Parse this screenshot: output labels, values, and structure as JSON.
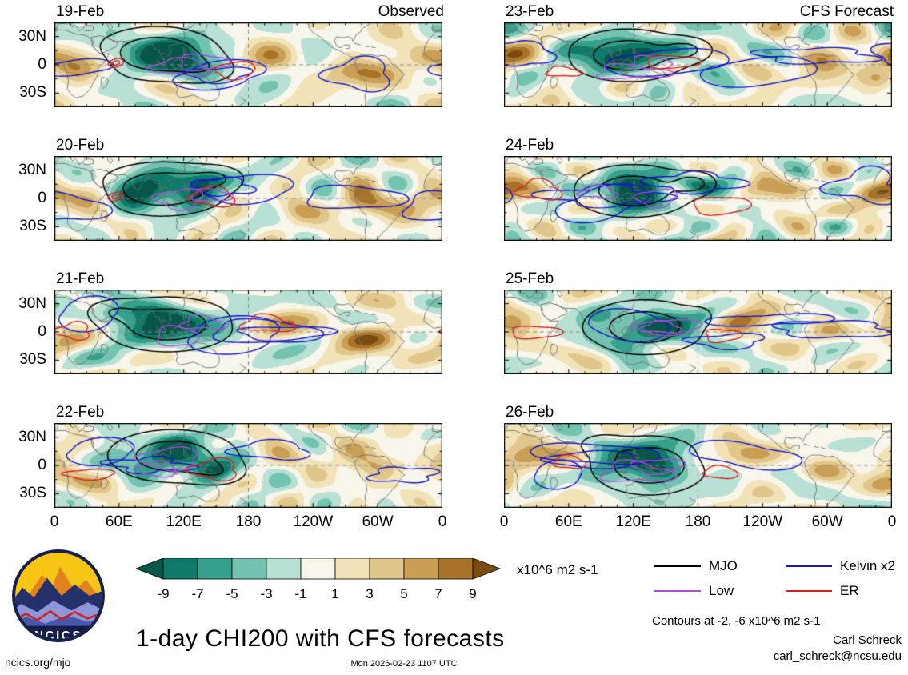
{
  "chart_data": {
    "type": "heatmap",
    "title": "1-day CHI200 with CFS forecasts",
    "contours_note": "Contours at -2, -6 x10^6 m2 s-1",
    "xticks": [
      "0",
      "60E",
      "120E",
      "180",
      "120W",
      "60W",
      "0"
    ],
    "yticks": [
      "30N",
      "0",
      "30S"
    ],
    "colorbar": {
      "levels": [
        "-9",
        "-7",
        "-5",
        "-3",
        "-1",
        "1",
        "3",
        "5",
        "7",
        "9"
      ],
      "colors": [
        "#06564a",
        "#0f7a69",
        "#35a18c",
        "#74c3b0",
        "#b8e0d4",
        "#f8f6ea",
        "#f1e2b8",
        "#e0c68a",
        "#ca9f55",
        "#a87328",
        "#7a4c10"
      ],
      "units": "x10^6 m2 s-1"
    },
    "legend": [
      {
        "label": "MJO",
        "color": "#000000"
      },
      {
        "label": "Low",
        "color": "#a84fd8"
      },
      {
        "label": "Kelvin x2",
        "color": "#1414cc"
      },
      {
        "label": "ER",
        "color": "#d62020"
      }
    ],
    "columns": [
      {
        "label": "Observed",
        "panels": [
          {
            "date": "19-Feb",
            "anomalies": [
              {
                "lon": 95,
                "lat": 12,
                "amp": -11,
                "rlon": 45,
                "rlat": 22
              },
              {
                "lon": 140,
                "lat": -5,
                "amp": -4,
                "rlon": 28,
                "rlat": 14
              },
              {
                "lon": 20,
                "lat": -4,
                "amp": 7,
                "rlon": 26,
                "rlat": 17
              },
              {
                "lon": 350,
                "lat": 10,
                "amp": 5,
                "rlon": 24,
                "rlat": 14
              },
              {
                "lon": 285,
                "lat": -8,
                "amp": 7,
                "rlon": 30,
                "rlat": 15
              },
              {
                "lon": 215,
                "lat": 8,
                "amp": 3,
                "rlon": 32,
                "rlat": 14
              }
            ]
          },
          {
            "date": "20-Feb",
            "anomalies": [
              {
                "lon": 100,
                "lat": 10,
                "amp": -11,
                "rlon": 48,
                "rlat": 22
              },
              {
                "lon": 150,
                "lat": 22,
                "amp": -5,
                "rlon": 22,
                "rlat": 11
              },
              {
                "lon": 15,
                "lat": 0,
                "amp": 6,
                "rlon": 28,
                "rlat": 17
              },
              {
                "lon": 300,
                "lat": -6,
                "amp": 7,
                "rlon": 33,
                "rlat": 15
              },
              {
                "lon": 230,
                "lat": -12,
                "amp": 4,
                "rlon": 28,
                "rlat": 12
              }
            ]
          },
          {
            "date": "21-Feb",
            "anomalies": [
              {
                "lon": 105,
                "lat": 8,
                "amp": -10,
                "rlon": 50,
                "rlat": 23
              },
              {
                "lon": 55,
                "lat": 22,
                "amp": -4,
                "rlon": 22,
                "rlat": 11
              },
              {
                "lon": 290,
                "lat": -5,
                "amp": 8,
                "rlon": 31,
                "rlat": 15
              },
              {
                "lon": 8,
                "lat": -12,
                "amp": 5,
                "rlon": 24,
                "rlat": 13
              },
              {
                "lon": 205,
                "lat": 12,
                "amp": 4,
                "rlon": 27,
                "rlat": 12
              }
            ]
          },
          {
            "date": "22-Feb",
            "anomalies": [
              {
                "lon": 110,
                "lat": 10,
                "amp": -10,
                "rlon": 48,
                "rlat": 22
              },
              {
                "lon": 152,
                "lat": -8,
                "amp": -4,
                "rlon": 24,
                "rlat": 12
              },
              {
                "lon": 295,
                "lat": 0,
                "amp": 6,
                "rlon": 29,
                "rlat": 14
              },
              {
                "lon": 20,
                "lat": -16,
                "amp": 5,
                "rlon": 26,
                "rlat": 13
              },
              {
                "lon": 228,
                "lat": 15,
                "amp": 4,
                "rlon": 28,
                "rlat": 12
              },
              {
                "lon": 355,
                "lat": 20,
                "amp": 4,
                "rlon": 19,
                "rlat": 10
              }
            ]
          }
        ]
      },
      {
        "label": "CFS Forecast",
        "panels": [
          {
            "date": "23-Feb",
            "anomalies": [
              {
                "lon": 115,
                "lat": 10,
                "amp": -10,
                "rlon": 45,
                "rlat": 22
              },
              {
                "lon": 170,
                "lat": 16,
                "amp": -6,
                "rlon": 20,
                "rlat": 11
              },
              {
                "lon": 20,
                "lat": 6,
                "amp": 5,
                "rlon": 24,
                "rlat": 14
              },
              {
                "lon": 300,
                "lat": 6,
                "amp": 5,
                "rlon": 27,
                "rlat": 13
              },
              {
                "lon": 242,
                "lat": -6,
                "amp": 4,
                "rlon": 28,
                "rlat": 13
              },
              {
                "lon": 350,
                "lat": -16,
                "amp": 4,
                "rlon": 19,
                "rlat": 10
              }
            ]
          },
          {
            "date": "24-Feb",
            "anomalies": [
              {
                "lon": 120,
                "lat": 8,
                "amp": -10,
                "rlon": 45,
                "rlat": 22
              },
              {
                "lon": 176,
                "lat": 16,
                "amp": -7,
                "rlon": 17,
                "rlat": 10
              },
              {
                "lon": 25,
                "lat": 10,
                "amp": 4,
                "rlon": 24,
                "rlat": 13
              },
              {
                "lon": 352,
                "lat": 6,
                "amp": 7,
                "rlon": 24,
                "rlat": 13
              },
              {
                "lon": 256,
                "lat": 10,
                "amp": 4,
                "rlon": 27,
                "rlat": 12
              },
              {
                "lon": 300,
                "lat": -16,
                "amp": 4,
                "rlon": 21,
                "rlat": 10
              }
            ]
          },
          {
            "date": "25-Feb",
            "anomalies": [
              {
                "lon": 130,
                "lat": 5,
                "amp": -10,
                "rlon": 45,
                "rlat": 23
              },
              {
                "lon": 186,
                "lat": 16,
                "amp": -5,
                "rlon": 17,
                "rlat": 10
              },
              {
                "lon": 215,
                "lat": 15,
                "amp": 7,
                "rlon": 27,
                "rlat": 13
              },
              {
                "lon": 10,
                "lat": 6,
                "amp": 5,
                "rlon": 24,
                "rlat": 13
              },
              {
                "lon": 300,
                "lat": 0,
                "amp": 4,
                "rlon": 24,
                "rlat": 12
              },
              {
                "lon": 60,
                "lat": -22,
                "amp": 3,
                "rlon": 21,
                "rlat": 10
              }
            ]
          },
          {
            "date": "26-Feb",
            "anomalies": [
              {
                "lon": 135,
                "lat": 0,
                "amp": -11,
                "rlon": 42,
                "rlat": 24
              },
              {
                "lon": 90,
                "lat": 22,
                "amp": -4,
                "rlon": 19,
                "rlat": 10
              },
              {
                "lon": 20,
                "lat": 10,
                "amp": 8,
                "rlon": 27,
                "rlat": 15
              },
              {
                "lon": 220,
                "lat": 10,
                "amp": 6,
                "rlon": 29,
                "rlat": 13
              },
              {
                "lon": 300,
                "lat": -6,
                "amp": 4,
                "rlon": 24,
                "rlat": 12
              },
              {
                "lon": 355,
                "lat": -20,
                "amp": 3,
                "rlon": 17,
                "rlat": 9
              }
            ]
          }
        ]
      }
    ]
  },
  "footer": {
    "logo_text": "NCICS",
    "site": "ncics.org/mjo",
    "timestamp": "Mon 2026-02-23 1107 UTC",
    "credit_name": "Carl Schreck",
    "credit_email": "carl_schreck@ncsu.edu"
  }
}
